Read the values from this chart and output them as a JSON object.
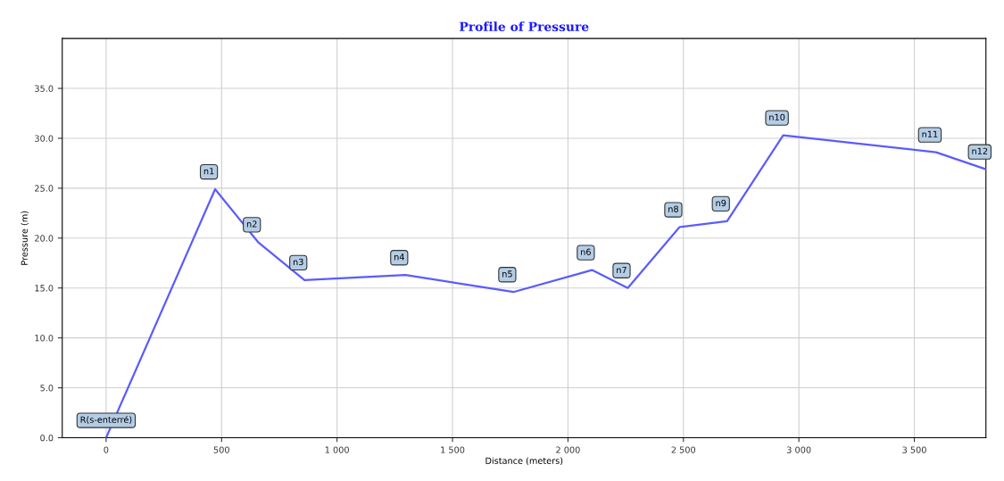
{
  "chart_data": {
    "type": "line",
    "title": "Profile of Pressure",
    "xlabel": "Distance (meters)",
    "ylabel": "Pressure (m)",
    "x": [
      0,
      472,
      658,
      859,
      1296,
      1764,
      2104,
      2259,
      2483,
      2689,
      2932,
      3594,
      3810
    ],
    "series": [
      {
        "color": "#5b5bff",
        "values": [
          0,
          24.9,
          19.6,
          15.8,
          16.3,
          14.6,
          16.8,
          15.0,
          21.1,
          21.7,
          30.3,
          28.6,
          26.9
        ]
      }
    ],
    "annotations": [
      {
        "text": "R(s-enterré)",
        "x": 0,
        "y": 0
      },
      {
        "text": "n1",
        "x": 472,
        "y": 24.9
      },
      {
        "text": "n2",
        "x": 658,
        "y": 19.6
      },
      {
        "text": "n3",
        "x": 859,
        "y": 15.8
      },
      {
        "text": "n4",
        "x": 1296,
        "y": 16.3
      },
      {
        "text": "n5",
        "x": 1764,
        "y": 14.6
      },
      {
        "text": "n6",
        "x": 2104,
        "y": 16.8
      },
      {
        "text": "n7",
        "x": 2259,
        "y": 15.0
      },
      {
        "text": "n8",
        "x": 2483,
        "y": 21.1
      },
      {
        "text": "n9",
        "x": 2689,
        "y": 21.7
      },
      {
        "text": "n10",
        "x": 2932,
        "y": 30.3
      },
      {
        "text": "n11",
        "x": 3594,
        "y": 28.6
      },
      {
        "text": "n12",
        "x": 3810,
        "y": 26.9
      }
    ],
    "xlim": [
      -190,
      3810
    ],
    "ylim": [
      0,
      40
    ],
    "xticks": [
      {
        "value": 0,
        "label": "0"
      },
      {
        "value": 500,
        "label": "500"
      },
      {
        "value": 1000,
        "label": "1 000"
      },
      {
        "value": 1500,
        "label": "1 500"
      },
      {
        "value": 2000,
        "label": "2 000"
      },
      {
        "value": 2500,
        "label": "2 500"
      },
      {
        "value": 3000,
        "label": "3 000"
      },
      {
        "value": 3500,
        "label": "3 500"
      }
    ],
    "yticks": [
      {
        "value": 0,
        "label": "0.0"
      },
      {
        "value": 5,
        "label": "5.0"
      },
      {
        "value": 10,
        "label": "10.0"
      },
      {
        "value": 15,
        "label": "15.0"
      },
      {
        "value": 20,
        "label": "20.0"
      },
      {
        "value": 25,
        "label": "25.0"
      },
      {
        "value": 30,
        "label": "30.0"
      },
      {
        "value": 35,
        "label": "35.0"
      }
    ],
    "grid": true,
    "marker": "none",
    "line_style": "solid"
  }
}
